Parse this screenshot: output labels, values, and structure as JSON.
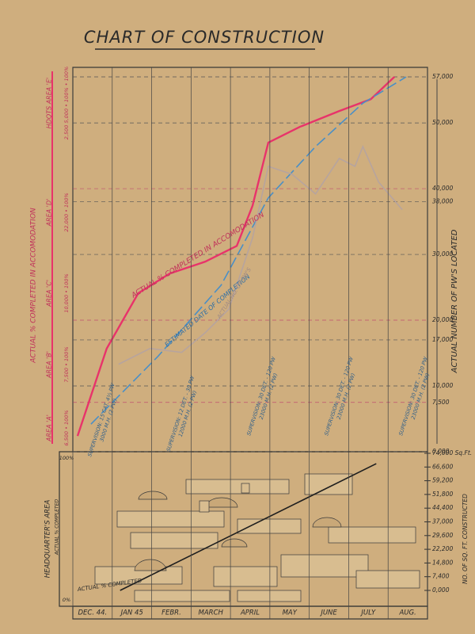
{
  "chart_data": [
    {
      "type": "line",
      "title": "CHART OF CONSTRUCTION",
      "y_label": "ACTUAL NUMBER OF PW'S LOCATED",
      "left_label": "ACTUAL % COMPLETED IN ACCOMODATION",
      "xlim": [
        0,
        9
      ],
      "ylim": [
        0,
        57000
      ],
      "yticks": [
        {
          "value": 0,
          "label": "0,000"
        },
        {
          "value": 7500,
          "label": "7,500"
        },
        {
          "value": 10000,
          "label": "10,000"
        },
        {
          "value": 17000,
          "label": "17,000"
        },
        {
          "value": 20000,
          "label": "20,000"
        },
        {
          "value": 30000,
          "label": "30,000"
        },
        {
          "value": 38000,
          "label": "38,000"
        },
        {
          "value": 40000,
          "label": "40,000"
        },
        {
          "value": 50000,
          "label": "50,000"
        },
        {
          "value": 57000,
          "label": "57,000"
        }
      ],
      "grid": true,
      "series": [
        {
          "name": "ACTUAL % COMPLETED IN ACCOMODATION",
          "color": "#e8336a",
          "x": [
            0.12,
            0.86,
            1.66,
            2.46,
            3.36,
            4.16,
            4.56,
            4.96,
            5.76,
            6.76,
            7.56,
            8.16
          ],
          "values": [
            2400,
            15700,
            24100,
            27100,
            28900,
            31300,
            37400,
            47000,
            49400,
            51800,
            53600,
            57000
          ]
        },
        {
          "name": "ESTIMATED DATE OF COMPLETION",
          "color": "#4a8fc6",
          "x": [
            0.46,
            2.16,
            3.76,
            4.96,
            6.16,
            7.36,
            8.46
          ],
          "values": [
            4200,
            14500,
            25300,
            38600,
            46400,
            53000,
            57000
          ]
        },
        {
          "name": "ACTUAL NO. OF PW'S",
          "color": "#b7a49e",
          "x": [
            1.16,
            1.96,
            2.76,
            3.36,
            3.96,
            4.56,
            4.96,
            5.56,
            6.16,
            6.76,
            7.16,
            7.36,
            7.76,
            8.36
          ],
          "values": [
            13300,
            15700,
            15100,
            18100,
            21700,
            32500,
            43400,
            42200,
            39200,
            44600,
            43400,
            46400,
            41000,
            36800
          ]
        }
      ],
      "areas": [
        {
          "label": "AREA 'A'",
          "text": "6,500 • 100%"
        },
        {
          "label": "AREA 'B'",
          "text": "7,500 • 100%"
        },
        {
          "label": "AREA 'C'",
          "text": "10,000 • 100%"
        },
        {
          "label": "AREA 'D'",
          "text": "22,000 • 100%"
        },
        {
          "label": "HDQTS AREA 'E'",
          "text": "2,500 5,000 • 100% • 100%"
        }
      ],
      "annotations": [
        [
          "SUPERVISION: 15 CAT. 4½ PW",
          "3000 M.H. (2 PW)"
        ],
        [
          "SUPERVISION: 12 DET. - 30 PW",
          "12000 M.H. (2 PW)"
        ],
        [
          "SUPERVISION: 30 DET. - 120 PW",
          "23000 M.H. (2 PW)"
        ],
        [
          "SUPERVISION: 30 DET. - 120 PW",
          "23000 M.H. (2 PW)"
        ],
        [
          "SUPERVISION: 30 DET. - 120 PW",
          "23000 M.H. (2 PW)"
        ]
      ]
    },
    {
      "type": "line",
      "y_label": "NO. OF SQ. FT. CONSTRUCTED",
      "left_label": "HEADQUARTER'S AREA",
      "left_sublabel": "ACTUAL % COMPLETED",
      "left_ticks": [
        "100%",
        "0%"
      ],
      "categories": [
        "DEC. 44.",
        "JAN 45",
        "FEBR.",
        "MARCH",
        "APRIL",
        "MAY",
        "JUNE",
        "JULY",
        "AUG."
      ],
      "xlim": [
        0,
        9
      ],
      "ylim": [
        0,
        74000
      ],
      "yticks": [
        {
          "value": 0,
          "label": "0,000"
        },
        {
          "value": 7400,
          "label": "7,400"
        },
        {
          "value": 14800,
          "label": "14,800"
        },
        {
          "value": 22200,
          "label": "22,200"
        },
        {
          "value": 29600,
          "label": "29,600"
        },
        {
          "value": 37000,
          "label": "37,000"
        },
        {
          "value": 44400,
          "label": "44,400"
        },
        {
          "value": 51800,
          "label": "51,800"
        },
        {
          "value": 59200,
          "label": "59,200"
        },
        {
          "value": 66600,
          "label": "66,600"
        },
        {
          "value": 74000,
          "label": "74,000 Sq.Ft."
        }
      ],
      "series": [
        {
          "name": "ACTUAL % COMPLETED",
          "color": "#1e1e1e",
          "x": [
            1.2,
            7.7
          ],
          "values": [
            0,
            68400
          ]
        }
      ]
    }
  ]
}
